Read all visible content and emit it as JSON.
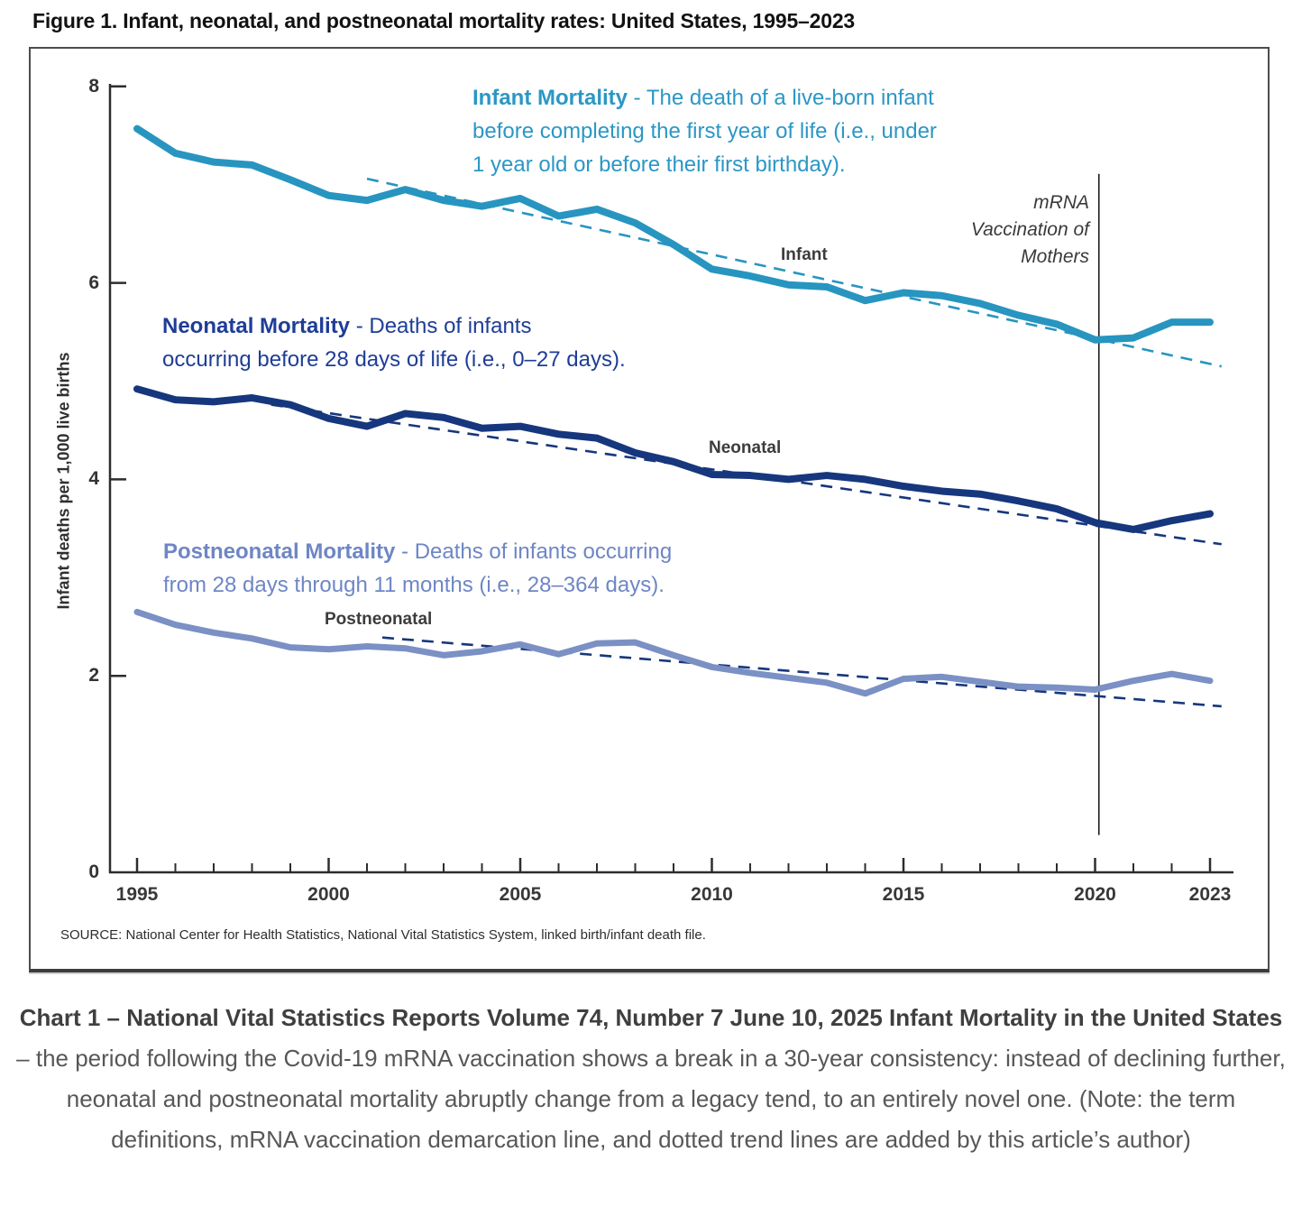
{
  "figure": {
    "title": "Figure 1. Infant, neonatal, and postneonatal mortality rates: United States, 1995–2023",
    "definitions": {
      "infant": {
        "term": "Infant Mortality",
        "line1_rest": " -  The death of a live-born infant",
        "line2": "before completing the first year of life (i.e., under",
        "line3": "1 year old or before their first birthday).",
        "color": "#2b97c5"
      },
      "neonatal": {
        "term": "Neonatal Mortality",
        "line1_rest": " -  Deaths of infants",
        "line2": "occurring before 28 days of life (i.e., 0–27 days).",
        "color": "#1e3d96"
      },
      "postneonatal": {
        "term": "Postneonatal Mortality",
        "line1_rest": " -  Deaths of infants occurring",
        "line2": "from 28 days through 11 months (i.e., 28–364 days).",
        "color": "#6e86c5"
      }
    },
    "annotation": {
      "line1": "mRNA",
      "line2": "Vaccination of",
      "line3": "Mothers"
    },
    "series_labels": {
      "infant": "Infant",
      "neonatal": "Neonatal",
      "postneonatal": "Postneonatal"
    },
    "source": "SOURCE: National Center for Health Statistics, National Vital Statistics System, linked birth/infant death file."
  },
  "chart_data": {
    "type": "line",
    "title": "Infant, neonatal, and postneonatal mortality rates: United States, 1995–2023",
    "xlabel": "",
    "ylabel": "Infant deaths per 1,000 live births",
    "ylim": [
      0,
      8
    ],
    "yticks": [
      0,
      2,
      4,
      6,
      8
    ],
    "xlim": [
      1995,
      2023
    ],
    "xticks_labeled": [
      1995,
      2000,
      2005,
      2010,
      2015,
      2020,
      2023
    ],
    "grid": false,
    "legend_position": "none",
    "x": [
      1995,
      1996,
      1997,
      1998,
      1999,
      2000,
      2001,
      2002,
      2003,
      2004,
      2005,
      2006,
      2007,
      2008,
      2009,
      2010,
      2011,
      2012,
      2013,
      2014,
      2015,
      2016,
      2017,
      2018,
      2019,
      2020,
      2021,
      2022,
      2023
    ],
    "series": [
      {
        "name": "Infant",
        "color": "#2795c0",
        "values": [
          7.57,
          7.32,
          7.23,
          7.2,
          7.05,
          6.89,
          6.84,
          6.95,
          6.84,
          6.78,
          6.86,
          6.68,
          6.75,
          6.61,
          6.39,
          6.14,
          6.07,
          5.98,
          5.96,
          5.82,
          5.9,
          5.87,
          5.79,
          5.67,
          5.58,
          5.42,
          5.44,
          5.6,
          5.6
        ]
      },
      {
        "name": "Neonatal",
        "color": "#16377d",
        "values": [
          4.92,
          4.81,
          4.79,
          4.83,
          4.76,
          4.62,
          4.54,
          4.67,
          4.63,
          4.52,
          4.54,
          4.46,
          4.42,
          4.27,
          4.18,
          4.05,
          4.04,
          4.0,
          4.04,
          4.0,
          3.93,
          3.88,
          3.85,
          3.78,
          3.7,
          3.56,
          3.49,
          3.58,
          3.65
        ]
      },
      {
        "name": "Postneonatal",
        "color": "#7b90c4",
        "values": [
          2.65,
          2.52,
          2.44,
          2.38,
          2.29,
          2.27,
          2.3,
          2.28,
          2.21,
          2.25,
          2.32,
          2.22,
          2.33,
          2.34,
          2.21,
          2.09,
          2.03,
          1.98,
          1.93,
          1.82,
          1.97,
          1.99,
          1.94,
          1.89,
          1.88,
          1.86,
          1.95,
          2.02,
          1.95
        ]
      }
    ],
    "trend_lines": [
      {
        "series": "Infant",
        "x1": 2001.0,
        "v1": 7.06,
        "x2": 2023.3,
        "v2": 5.15,
        "color": "#2795c0"
      },
      {
        "series": "Neonatal",
        "x1": 1998.5,
        "v1": 4.76,
        "x2": 2023.3,
        "v2": 3.34,
        "color": "#16377d"
      },
      {
        "series": "Postneonatal",
        "x1": 2001.4,
        "v1": 2.39,
        "x2": 2023.3,
        "v2": 1.69,
        "color": "#16377d"
      }
    ],
    "vline": {
      "year": 2020.1,
      "v_top": 7.11,
      "v_bottom": 0.38,
      "label": "mRNA Vaccination of Mothers",
      "color": "#1a1a1a"
    }
  },
  "caption": {
    "bold": "Chart 1 – National Vital Statistics Reports Volume 74, Number 7 June 10, 2025 Infant Mortality in the United States",
    "rest": " – the period following the Covid-19 mRNA vaccination shows a break in a 30-year consistency: instead of declining further, neonatal and postneonatal mortality abruptly change from a legacy tend, to an entirely novel one. (Note: the term definitions, mRNA vaccination demarcation line, and dotted trend lines are added by this article’s author)"
  }
}
